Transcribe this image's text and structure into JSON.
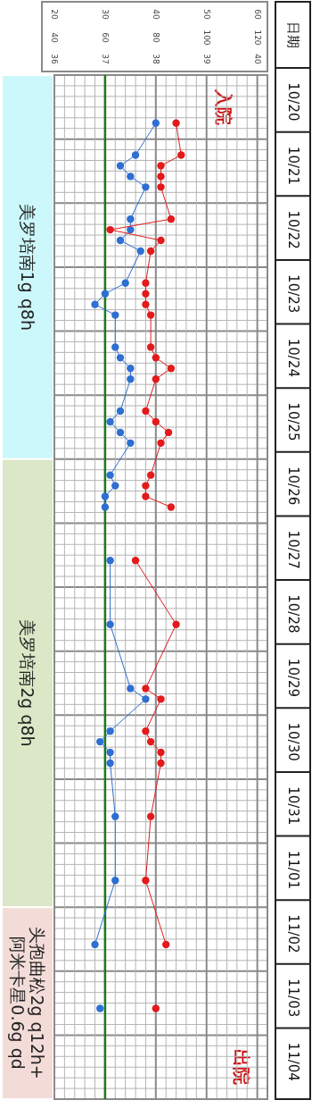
{
  "chart_data": {
    "type": "line",
    "orientation": "horizontal",
    "ylabel": "日期",
    "marker": "circle",
    "line_style": "solid",
    "grid": true,
    "categories": [
      null,
      null,
      "10/20",
      null,
      null,
      null,
      null,
      null,
      "10/21",
      null,
      null,
      null,
      null,
      null,
      "10/22",
      null,
      null,
      null,
      null,
      null,
      "10/23",
      null,
      null,
      null,
      null,
      null,
      "10/24",
      null,
      null,
      null,
      null,
      null,
      "10/25",
      null,
      null,
      null,
      null,
      null,
      "10/26",
      null,
      null,
      null,
      null,
      null,
      "10/27",
      null,
      null,
      null,
      null,
      null,
      "10/28",
      null,
      null,
      null,
      null,
      null,
      "10/29",
      null,
      null,
      null,
      null,
      null,
      "10/30",
      null,
      null,
      null,
      null,
      null,
      "10/31",
      null,
      null,
      null,
      null,
      null,
      "11/01",
      null,
      null,
      null,
      null,
      null,
      "11/02",
      null,
      null,
      null,
      null,
      null,
      "11/03",
      null,
      null,
      null,
      null,
      null,
      "11/04",
      null,
      null,
      null
    ],
    "xlim": [
      36,
      40.2
    ],
    "xticks": [
      36,
      37,
      38,
      39,
      40
    ],
    "x2lim": [
      40,
      124
    ],
    "x2ticks": [
      40,
      60,
      80,
      100,
      120
    ],
    "series": [
      {
        "color": "#2e6fd1",
        "values": [
          null,
          null,
          null,
          null,
          38.0,
          null,
          null,
          37.6,
          37.3,
          37.5,
          37.8,
          null,
          null,
          37.5,
          37.5,
          37.3,
          37.7,
          null,
          null,
          37.4,
          37.0,
          36.8,
          37.2,
          null,
          null,
          37.2,
          37.3,
          37.5,
          37.5,
          null,
          null,
          37.3,
          37.1,
          37.3,
          37.5,
          null,
          null,
          37.1,
          37.2,
          37.0,
          37.0,
          null,
          null,
          null,
          null,
          null,
          null,
          null,
          null,
          null,
          null,
          null,
          null,
          null,
          null,
          null,
          null,
          null,
          null,
          null,
          null,
          null,
          null,
          null,
          null,
          null,
          null,
          null,
          null,
          null,
          null,
          null,
          null,
          null,
          null,
          null,
          null,
          null,
          null,
          null,
          null,
          null,
          null,
          null,
          null,
          null,
          null,
          null,
          null,
          null,
          null,
          null,
          null,
          null,
          null,
          null
        ]
      },
      {
        "color": "#2e6fd1",
        "values": [
          null,
          null,
          null,
          null,
          null,
          null,
          null,
          null,
          null,
          null,
          null,
          null,
          null,
          null,
          null,
          null,
          null,
          null,
          null,
          null,
          null,
          null,
          null,
          null,
          null,
          null,
          null,
          null,
          null,
          null,
          null,
          null,
          null,
          null,
          null,
          null,
          null,
          null,
          null,
          null,
          null,
          null,
          null,
          null,
          null,
          37.1,
          null,
          null,
          null,
          null,
          null,
          37.1,
          null,
          null,
          null,
          null,
          null,
          37.5,
          37.8,
          null,
          null,
          37.1,
          36.9,
          37.1,
          37.1,
          null,
          null,
          null,
          null,
          37.2,
          null,
          null,
          null,
          null,
          null,
          37.2,
          null,
          null,
          null,
          null,
          null,
          36.8,
          null,
          null,
          null,
          null,
          null,
          null,
          null,
          null,
          null,
          null,
          null,
          null,
          null,
          null
        ]
      },
      {
        "color": "#2e6fd1",
        "values": [
          null,
          null,
          null,
          null,
          null,
          null,
          null,
          null,
          null,
          null,
          null,
          null,
          null,
          null,
          null,
          null,
          null,
          null,
          null,
          null,
          null,
          null,
          null,
          null,
          null,
          null,
          null,
          null,
          null,
          null,
          null,
          null,
          null,
          null,
          null,
          null,
          null,
          null,
          null,
          null,
          null,
          null,
          null,
          null,
          null,
          null,
          null,
          null,
          null,
          null,
          null,
          null,
          null,
          null,
          null,
          null,
          null,
          null,
          null,
          null,
          null,
          null,
          null,
          null,
          null,
          null,
          null,
          null,
          null,
          null,
          null,
          null,
          null,
          null,
          null,
          null,
          null,
          null,
          null,
          null,
          null,
          null,
          null,
          null,
          null,
          null,
          null,
          36.9,
          null,
          null,
          null,
          null,
          null,
          null,
          null,
          null
        ]
      },
      {
        "color": "#e31a1c",
        "axis": "x2",
        "values": [
          null,
          null,
          null,
          null,
          88,
          null,
          null,
          90,
          82,
          82,
          82,
          null,
          null,
          86,
          62,
          82,
          78,
          null,
          null,
          76,
          76,
          76,
          78,
          null,
          null,
          78,
          80,
          86,
          80,
          null,
          null,
          76,
          80,
          85,
          82,
          null,
          null,
          78,
          76,
          76,
          86,
          null,
          null,
          null,
          null,
          null,
          null,
          null,
          null,
          null,
          null,
          null,
          null,
          null,
          null,
          null,
          null,
          null,
          null,
          null,
          null,
          null,
          null,
          null,
          null,
          null,
          null,
          null,
          null,
          null,
          null,
          null,
          null,
          null,
          null,
          null,
          null,
          null,
          null,
          null,
          null,
          null,
          null,
          null,
          null,
          null,
          null,
          null,
          null,
          null,
          null,
          null,
          null,
          null,
          null,
          null
        ]
      },
      {
        "color": "#e31a1c",
        "axis": "x2",
        "values": [
          null,
          null,
          null,
          null,
          null,
          null,
          null,
          null,
          null,
          null,
          null,
          null,
          null,
          null,
          null,
          null,
          null,
          null,
          null,
          null,
          null,
          null,
          null,
          null,
          null,
          null,
          null,
          null,
          null,
          null,
          null,
          null,
          null,
          null,
          null,
          null,
          null,
          null,
          null,
          null,
          null,
          null,
          null,
          null,
          null,
          72,
          null,
          null,
          null,
          null,
          null,
          88,
          null,
          null,
          null,
          null,
          null,
          76,
          82,
          null,
          null,
          76,
          78,
          82,
          82,
          null,
          null,
          null,
          null,
          78,
          null,
          null,
          null,
          null,
          null,
          76,
          null,
          null,
          null,
          null,
          null,
          84,
          null,
          null,
          null,
          null,
          null,
          null,
          null,
          null,
          null,
          null,
          null,
          null,
          null,
          null
        ]
      },
      {
        "color": "#e31a1c",
        "axis": "x2",
        "values": [
          null,
          null,
          null,
          null,
          null,
          null,
          null,
          null,
          null,
          null,
          null,
          null,
          null,
          null,
          null,
          null,
          null,
          null,
          null,
          null,
          null,
          null,
          null,
          null,
          null,
          null,
          null,
          null,
          null,
          null,
          null,
          null,
          null,
          null,
          null,
          null,
          null,
          null,
          null,
          null,
          null,
          null,
          null,
          null,
          null,
          null,
          null,
          null,
          null,
          null,
          null,
          null,
          null,
          null,
          null,
          null,
          null,
          null,
          null,
          null,
          null,
          null,
          null,
          null,
          null,
          null,
          null,
          null,
          null,
          null,
          null,
          null,
          null,
          null,
          null,
          null,
          null,
          null,
          null,
          null,
          null,
          null,
          null,
          null,
          null,
          null,
          null,
          80,
          null,
          null,
          null,
          null,
          null,
          null,
          null,
          null
        ]
      }
    ],
    "ref_lines": [
      {
        "axis": "x",
        "value": 37,
        "color": "#1a7a1a"
      }
    ],
    "annotations": [
      "入院",
      "出院",
      "美罗培南1g q8h",
      "美罗培南2g q8h",
      "头孢曲松2g q12h+\n阿米卡星0.6g qd",
      "20",
      "30",
      "40",
      "50",
      "60"
    ]
  }
}
